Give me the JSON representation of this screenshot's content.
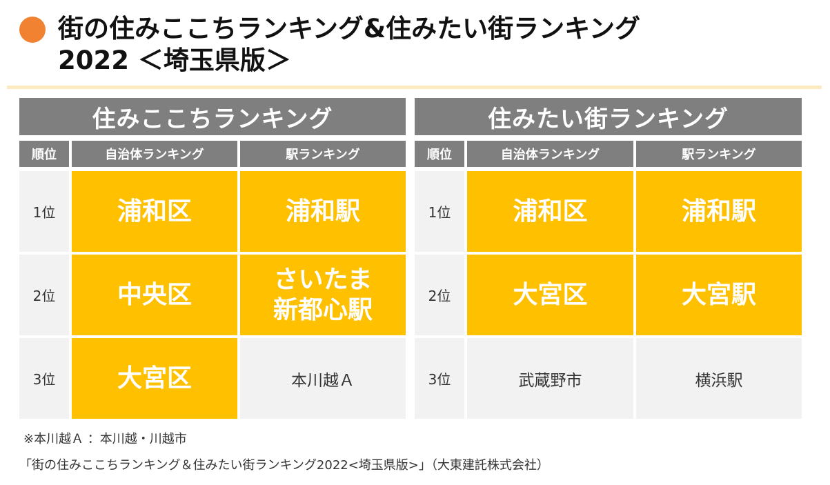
{
  "title": {
    "line1": "街の住みここちランキング&住みたい街ランキング",
    "line2": "2022 ＜埼玉県版＞"
  },
  "colors": {
    "accent_dot": "#F08232",
    "header_gray": "#7F7F7F",
    "highlight": "#FFC000",
    "cell_gray": "#F2F2F2"
  },
  "tables": [
    {
      "title": "住みここちランキング",
      "headers": [
        "順位",
        "自治体ランキング",
        "駅ランキング"
      ],
      "rows": [
        {
          "rank": "1位",
          "municipality": "浦和区",
          "station": "浦和駅"
        },
        {
          "rank": "2位",
          "municipality": "中央区",
          "station": "さいたま\n新都心駅"
        },
        {
          "rank": "3位",
          "municipality": "大宮区",
          "station": "本川越Ａ"
        }
      ]
    },
    {
      "title": "住みたい街ランキング",
      "headers": [
        "順位",
        "自治体ランキング",
        "駅ランキング"
      ],
      "rows": [
        {
          "rank": "1位",
          "municipality": "浦和区",
          "station": "浦和駅"
        },
        {
          "rank": "2位",
          "municipality": "大宮区",
          "station": "大宮駅"
        },
        {
          "rank": "3位",
          "municipality": "武蔵野市",
          "station": "横浜駅"
        }
      ]
    }
  ],
  "note": "※本川越Ａ ：本川越・川越市",
  "source": "「街の住みここちランキング＆住みたい街ランキング2022<埼玉県版>」（大東建託株式会社）"
}
